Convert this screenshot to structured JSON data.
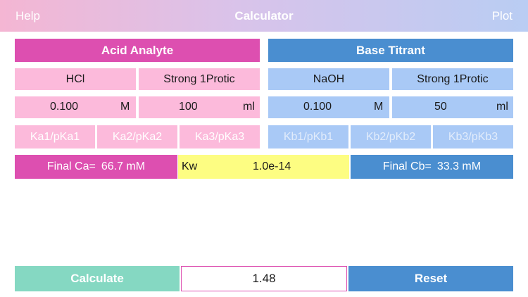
{
  "header": {
    "help": "Help",
    "title": "Calculator",
    "plot": "Plot"
  },
  "acid": {
    "title": "Acid Analyte",
    "name": "HCl",
    "type": "Strong 1Protic",
    "concentration": "0.100",
    "conc_unit": "M",
    "volume": "100",
    "vol_unit": "ml",
    "k1_placeholder": "Ka1/pKa1",
    "k2_placeholder": "Ka2/pKa2",
    "k3_placeholder": "Ka3/pKa3"
  },
  "base": {
    "title": "Base Titrant",
    "name": "NaOH",
    "type": "Strong 1Protic",
    "concentration": "0.100",
    "conc_unit": "M",
    "volume": "50",
    "vol_unit": "ml",
    "k1_placeholder": "Kb1/pKb1",
    "k2_placeholder": "Kb2/pKb2",
    "k3_placeholder": "Kb3/pKb3"
  },
  "final": {
    "ca_label": "Final Ca=",
    "ca_value": "66.7 mM",
    "kw_label": "Kw",
    "kw_value": "1.0e-14",
    "cb_label": "Final Cb=",
    "cb_value": "33.3 mM"
  },
  "footer": {
    "calculate": "Calculate",
    "result": "1.48",
    "reset": "Reset"
  },
  "colors": {
    "acid_dark": "#dd4fb0",
    "acid_light": "#fcbadb",
    "base_dark": "#4a8ed0",
    "base_light": "#a9c9f6",
    "kw": "#fdfd82",
    "calculate": "#85d8c2"
  }
}
